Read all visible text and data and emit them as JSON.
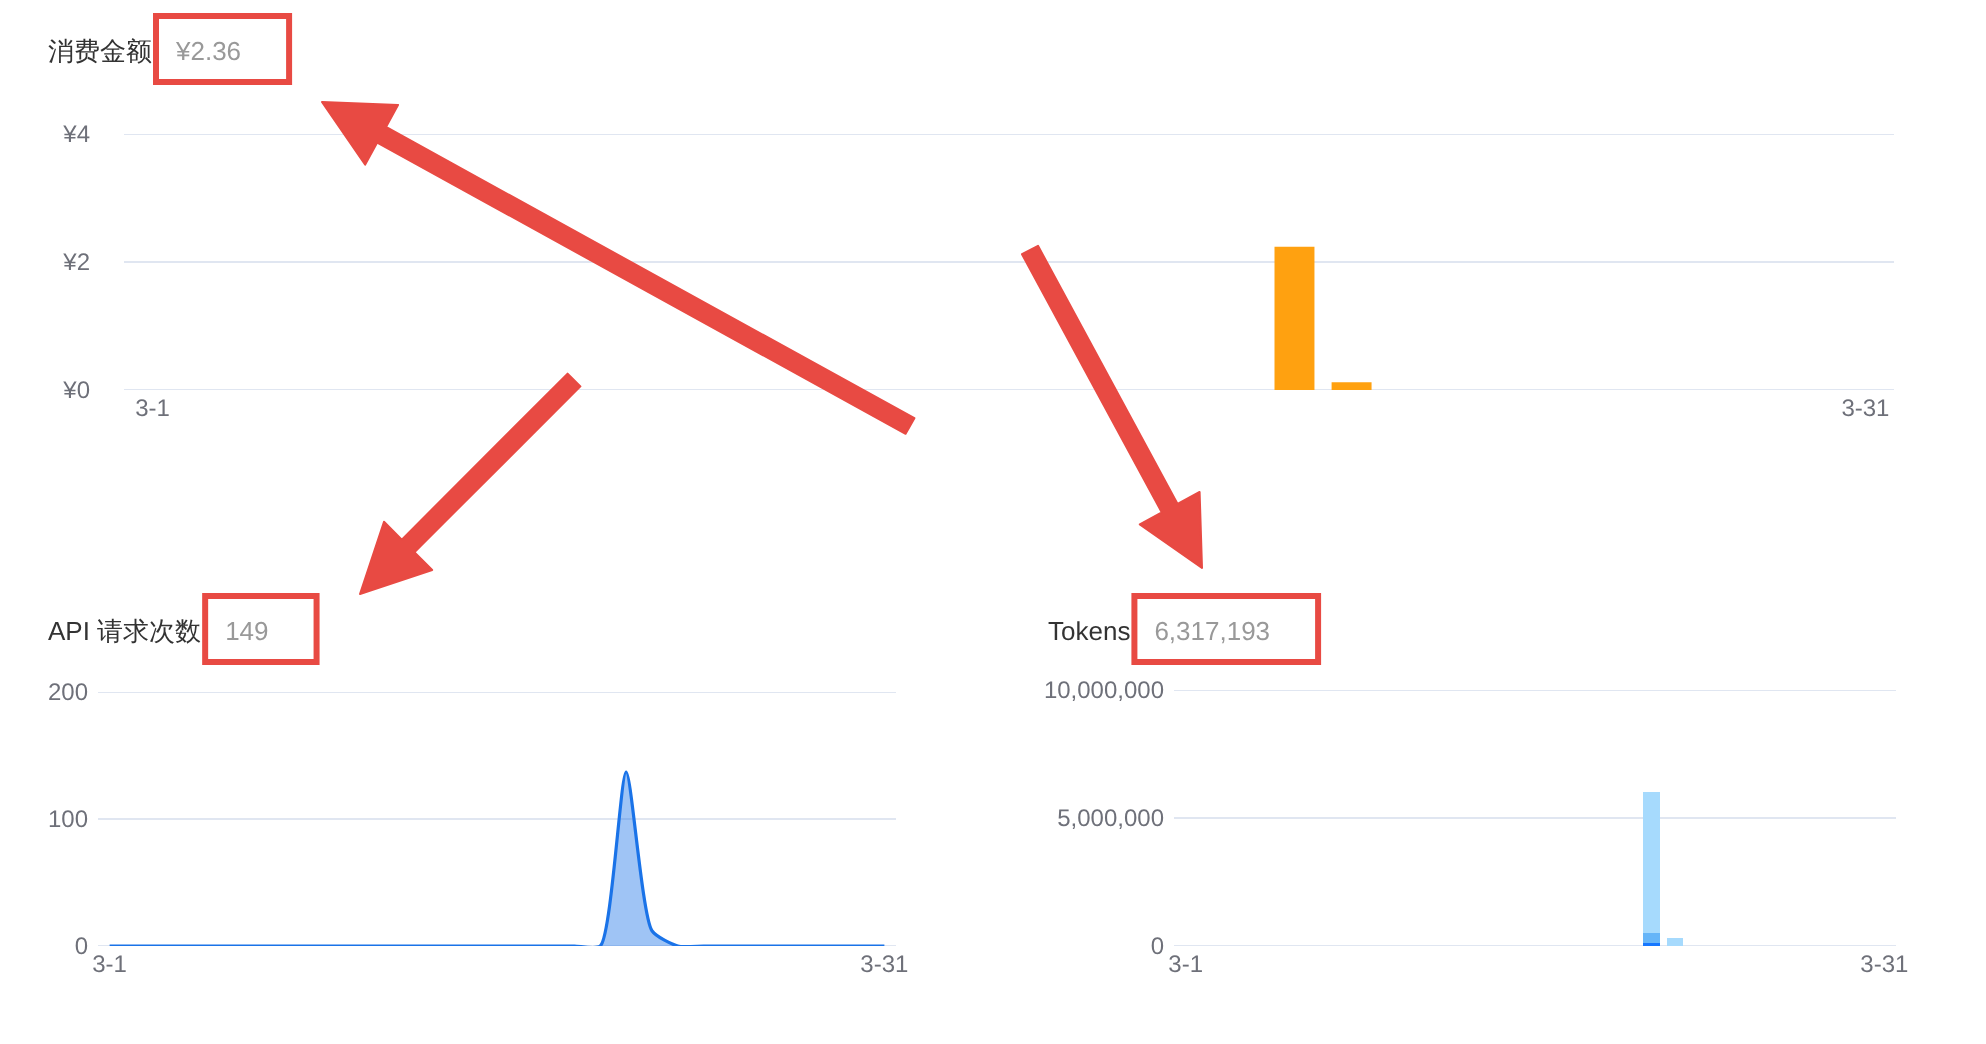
{
  "chart_data": [
    {
      "type": "bar",
      "title": "消费金额",
      "subtitle": "¥2.36",
      "categories": [
        "3-1",
        null,
        null,
        null,
        null,
        null,
        null,
        null,
        null,
        null,
        null,
        null,
        null,
        null,
        null,
        null,
        null,
        null,
        null,
        null,
        null,
        null,
        null,
        null,
        null,
        null,
        null,
        null,
        null,
        null,
        "3-31"
      ],
      "values": [
        0,
        0,
        0,
        0,
        0,
        0,
        0,
        0,
        0,
        0,
        0,
        0,
        0,
        0,
        0,
        0,
        0,
        0,
        0,
        0,
        2.24,
        0.12,
        0,
        0,
        0,
        0,
        0,
        0,
        0,
        0,
        0
      ],
      "color": "#ffa110",
      "ylim": [
        0,
        4
      ],
      "yticks": [
        {
          "value": 0,
          "label": "¥0"
        },
        {
          "value": 2,
          "label": "¥2"
        },
        {
          "value": 4,
          "label": "¥4"
        }
      ],
      "grid": "y"
    },
    {
      "type": "area",
      "title": "API 请求次数",
      "subtitle": "149",
      "categories": [
        "3-1",
        null,
        null,
        null,
        null,
        null,
        null,
        null,
        null,
        null,
        null,
        null,
        null,
        null,
        null,
        null,
        null,
        null,
        null,
        null,
        null,
        null,
        null,
        null,
        null,
        null,
        null,
        null,
        null,
        null,
        "3-31"
      ],
      "values": [
        0,
        0,
        0,
        0,
        0,
        0,
        0,
        0,
        0,
        0,
        0,
        0,
        0,
        0,
        0,
        0,
        0,
        0,
        0,
        0,
        137,
        12,
        0,
        0,
        0,
        0,
        0,
        0,
        0,
        0,
        0
      ],
      "color": "#1a73e8",
      "ylim": [
        0,
        200
      ],
      "yticks": [
        0,
        100,
        200
      ],
      "grid": "y"
    },
    {
      "type": "bar",
      "stacked": true,
      "title": "Tokens",
      "subtitle": "6,317,193",
      "categories": [
        "3-1",
        null,
        null,
        null,
        null,
        null,
        null,
        null,
        null,
        null,
        null,
        null,
        null,
        null,
        null,
        null,
        null,
        null,
        null,
        null,
        null,
        null,
        null,
        null,
        null,
        null,
        null,
        null,
        null,
        null,
        "3-31"
      ],
      "series": [
        {
          "color": "#1677ff",
          "values": [
            0,
            0,
            0,
            0,
            0,
            0,
            0,
            0,
            0,
            0,
            0,
            0,
            0,
            0,
            0,
            0,
            0,
            0,
            0,
            0,
            100000,
            0,
            0,
            0,
            0,
            0,
            0,
            0,
            0,
            0,
            0
          ]
        },
        {
          "color": "#66b5f8",
          "values": [
            0,
            0,
            0,
            0,
            0,
            0,
            0,
            0,
            0,
            0,
            0,
            0,
            0,
            0,
            0,
            0,
            0,
            0,
            0,
            0,
            400000,
            0,
            0,
            0,
            0,
            0,
            0,
            0,
            0,
            0,
            0
          ]
        },
        {
          "color": "#a6dafd",
          "values": [
            0,
            0,
            0,
            0,
            0,
            0,
            0,
            0,
            0,
            0,
            0,
            0,
            0,
            0,
            0,
            0,
            0,
            0,
            0,
            0,
            5500000,
            300000,
            0,
            0,
            0,
            0,
            0,
            0,
            0,
            0,
            0
          ]
        }
      ],
      "ylim": [
        0,
        10000000
      ],
      "yticks": [
        0,
        {
          "value": 5000000,
          "label": "5,000,000"
        },
        {
          "value": 10000000,
          "label": "10,000,000"
        }
      ],
      "grid": "y"
    }
  ]
}
